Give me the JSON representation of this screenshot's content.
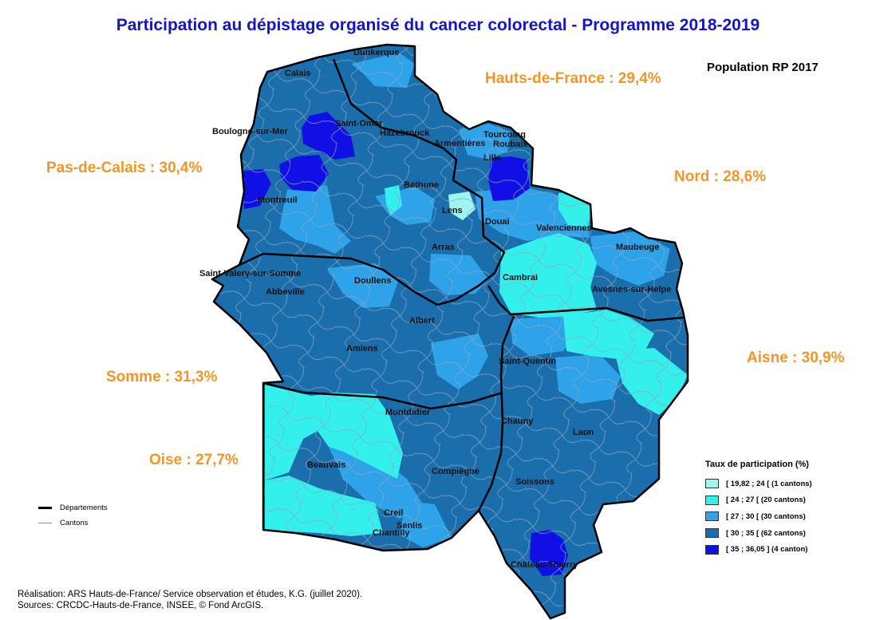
{
  "title": "Participation au dépistage organisé du cancer colorectal - Programme 2018-2019",
  "population_label": "Population RP 2017",
  "departments": {
    "hauts_de_france": "Hauts-de-France : 29,4%",
    "pas_de_calais": "Pas-de-Calais : 30,4%",
    "nord": "Nord : 28,6%",
    "aisne": "Aisne : 30,9%",
    "somme": "Somme : 31,3%",
    "oise": "Oise : 27,7%"
  },
  "cities": {
    "dunkerque": "Dunkerque",
    "calais": "Calais",
    "boulogne": "Boulogne-sur-Mer",
    "saint_omer": "Saint-Omer",
    "hazebrouck": "Hazebrouck",
    "armentieres": "Armentières",
    "tourcoing": "Tourcoing",
    "roubaix": "Roubaix",
    "lille": "Lille",
    "montreuil": "Montreuil",
    "bethune": "Béthune",
    "lens": "Lens",
    "douai": "Douai",
    "valenciennes": "Valenciennes",
    "arras": "Arras",
    "maubeuge": "Maubeuge",
    "saint_valery": "Saint-Valery-sur-Somme",
    "abbeville": "Abbeville",
    "doullens": "Doullens",
    "cambrai": "Cambrai",
    "avesnes": "Avesnes-sur-Helpe",
    "albert": "Albert",
    "amiens": "Amiens",
    "saint_quentin": "Saint-Quentin",
    "montdidier": "Montdidier",
    "chauny": "Chauny",
    "laon": "Laon",
    "beauvais": "Beauvais",
    "compiegne": "Compiègne",
    "soissons": "Soissons",
    "creil": "Creil",
    "senlis": "Senlis",
    "chantilly": "Chantilly",
    "chateau_thierry": "Château-Thierry"
  },
  "legend": {
    "title": "Taux de participation (%)",
    "classes": [
      {
        "label": "[ 19,82 ; 24 [ (1 cantons)",
        "color": "#9ff5ef"
      },
      {
        "label": "[ 24 ; 27 [ (20 cantons)",
        "color": "#33f0ec"
      },
      {
        "label": "[ 27 ; 30 [ (30 cantons)",
        "color": "#2ea3ea"
      },
      {
        "label": "[ 30 ; 35 [ (62 cantons)",
        "color": "#1b6eac"
      },
      {
        "label": "[ 35 ; 36,05 ] (4 canton)",
        "color": "#1010e6"
      }
    ],
    "departements_label": "Départements",
    "cantons_label": "Cantons"
  },
  "footer": {
    "realisation": "Réalisation: ARS Hauts-de-France/ Service observation et études, K.G. (juillet 2020).",
    "sources": "Sources: CRCDC-Hauts-de-France, INSEE, © Fond ArcGIS."
  }
}
